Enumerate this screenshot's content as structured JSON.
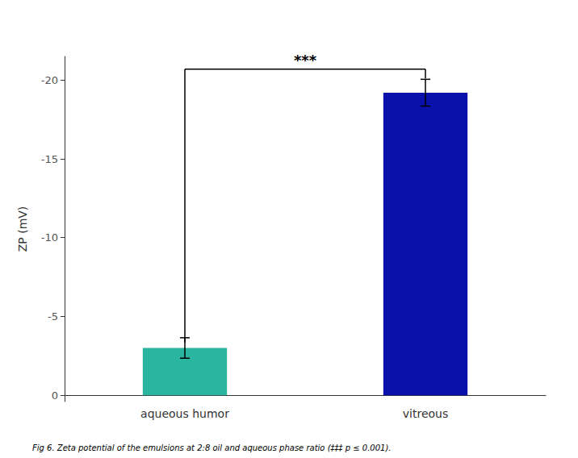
{
  "chart_data": {
    "type": "bar",
    "categories": [
      "aqueous humor",
      "vitreous"
    ],
    "values": [
      -3.0,
      -19.2
    ],
    "errors": [
      0.65,
      0.85
    ],
    "colors": [
      "#2ab5a0",
      "#0a10aa"
    ],
    "ylabel": "ZP (mV)",
    "ylim": [
      0.4,
      -21.5
    ],
    "yticks": [
      0,
      -5,
      -10,
      -15,
      -20
    ],
    "grid": false,
    "annotations": [
      {
        "text": "***",
        "from": "aqueous humor",
        "to": "vitreous",
        "y": -20.7,
        "arm_ends": [
          -3.35,
          -20.1
        ]
      }
    ],
    "caption": "Fig 6. Zeta potential of the emulsions at 2:8 oil and aqueous phase ratio (‡‡‡ p ≤ 0.001)."
  }
}
